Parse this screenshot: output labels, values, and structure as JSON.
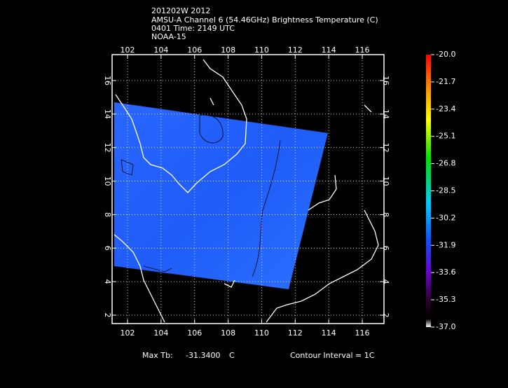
{
  "header": {
    "lines": [
      "201202W 2012",
      "AMSU-A Channel 6 (54.46GHz) Brightness Temperature (C)",
      "0401 Time: 2149 UTC",
      "NOAA-15"
    ]
  },
  "map": {
    "lon_ticks": [
      102,
      104,
      106,
      108,
      110,
      112,
      114,
      116
    ],
    "lat_ticks": [
      2,
      4,
      6,
      8,
      10,
      12,
      14,
      16
    ]
  },
  "colorbar": {
    "labels": [
      "-20.0",
      "-21.7",
      "-23.4",
      "-25.1",
      "-26.8",
      "-28.5",
      "-30.2",
      "-31.9",
      "-33.6",
      "-35.3",
      "-37.0"
    ]
  },
  "footer": {
    "max_label": "Max Tb:",
    "max_value": "-31.3400",
    "max_unit": "C",
    "contour": "Contour Interval = 1C"
  }
}
